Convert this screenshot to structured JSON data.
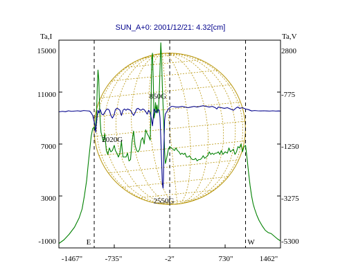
{
  "chart_data": {
    "type": "line",
    "title": "SUN_A+0: 2001/12/21: 4.32[cm]",
    "left_axis": {
      "label": "Ta,I",
      "ticks": [
        "15000",
        "11000",
        "7000",
        "3000",
        "-1000"
      ],
      "values": [
        15000,
        11000,
        7000,
        3000,
        -1000
      ],
      "ylim": [
        -1000,
        15000
      ]
    },
    "right_axis": {
      "label": "Ta,V",
      "ticks": [
        "2800",
        "-775",
        "-1250",
        "-3275",
        "-5300"
      ]
    },
    "x_axis": {
      "ticks": [
        "-1467\"",
        "-735\"",
        "-2\"",
        "730\"",
        "1462\""
      ],
      "values": [
        -1467,
        -735,
        -2,
        730,
        1462
      ],
      "xlim": [
        -1467,
        1462
      ]
    },
    "limb_markers": [
      {
        "label": "E",
        "x": -1000
      },
      {
        "label": "",
        "x": -2
      },
      {
        "label": "W",
        "x": 1000
      }
    ],
    "annotations": [
      {
        "text": "850G",
        "x": -160,
        "y": 10500
      },
      {
        "text": "2020G",
        "x": -760,
        "y": 7150
      },
      {
        "text": "2550G",
        "x": -80,
        "y": 2450
      }
    ],
    "series": [
      {
        "color": "#008000",
        "points": [
          [
            -1467,
            -660
          ],
          [
            -1400,
            -380
          ],
          [
            -1330,
            60
          ],
          [
            -1260,
            600
          ],
          [
            -1200,
            1300
          ],
          [
            -1160,
            2000
          ],
          [
            -1130,
            3000
          ],
          [
            -1100,
            4200
          ],
          [
            -1080,
            5400
          ],
          [
            -1060,
            6500
          ],
          [
            -1040,
            7600
          ],
          [
            -1020,
            8200
          ],
          [
            -1000,
            8300
          ],
          [
            -990,
            8100
          ],
          [
            -980,
            8700
          ],
          [
            -970,
            9200
          ],
          [
            -960,
            11300
          ],
          [
            -950,
            12700
          ],
          [
            -940,
            12000
          ],
          [
            -930,
            10000
          ],
          [
            -920,
            8700
          ],
          [
            -910,
            7900
          ],
          [
            -900,
            7700
          ],
          [
            -880,
            7200
          ],
          [
            -860,
            7800
          ],
          [
            -840,
            6500
          ],
          [
            -820,
            6200
          ],
          [
            -800,
            6700
          ],
          [
            -780,
            6400
          ],
          [
            -760,
            6500
          ],
          [
            -735,
            6900
          ],
          [
            -720,
            6500
          ],
          [
            -700,
            6300
          ],
          [
            -680,
            6000
          ],
          [
            -660,
            6300
          ],
          [
            -640,
            7200
          ],
          [
            -620,
            6000
          ],
          [
            -600,
            6000
          ],
          [
            -580,
            6000
          ],
          [
            -560,
            6300
          ],
          [
            -540,
            5700
          ],
          [
            -520,
            5800
          ],
          [
            -500,
            7200
          ],
          [
            -480,
            8000
          ],
          [
            -460,
            6900
          ],
          [
            -440,
            6500
          ],
          [
            -420,
            6400
          ],
          [
            -400,
            6600
          ],
          [
            -380,
            7300
          ],
          [
            -360,
            7500
          ],
          [
            -340,
            7000
          ],
          [
            -320,
            8100
          ],
          [
            -300,
            7800
          ],
          [
            -280,
            7600
          ],
          [
            -260,
            7300
          ],
          [
            -250,
            9600
          ],
          [
            -240,
            13500
          ],
          [
            -230,
            14000
          ],
          [
            -220,
            12000
          ],
          [
            -210,
            9000
          ],
          [
            -200,
            9300
          ],
          [
            -190,
            10200
          ],
          [
            -180,
            9500
          ],
          [
            -170,
            10000
          ],
          [
            -160,
            9400
          ],
          [
            -150,
            9700
          ],
          [
            -140,
            11000
          ],
          [
            -130,
            12800
          ],
          [
            -120,
            14800
          ],
          [
            -110,
            13600
          ],
          [
            -100,
            11500
          ],
          [
            -90,
            10000
          ],
          [
            -80,
            8500
          ],
          [
            -70,
            6500
          ],
          [
            -60,
            5500
          ],
          [
            -50,
            5700
          ],
          [
            -40,
            6000
          ],
          [
            -30,
            6300
          ],
          [
            -20,
            6600
          ],
          [
            -2,
            6800
          ],
          [
            20,
            6700
          ],
          [
            40,
            6600
          ],
          [
            60,
            6500
          ],
          [
            80,
            6700
          ],
          [
            100,
            6500
          ],
          [
            120,
            6400
          ],
          [
            140,
            6200
          ],
          [
            160,
            6300
          ],
          [
            180,
            6200
          ],
          [
            200,
            6300
          ],
          [
            220,
            6000
          ],
          [
            240,
            6000
          ],
          [
            260,
            6100
          ],
          [
            280,
            5900
          ],
          [
            300,
            5800
          ],
          [
            320,
            5800
          ],
          [
            340,
            5900
          ],
          [
            360,
            5700
          ],
          [
            380,
            5800
          ],
          [
            400,
            5800
          ],
          [
            420,
            5900
          ],
          [
            440,
            6100
          ],
          [
            460,
            5900
          ],
          [
            480,
            6000
          ],
          [
            500,
            6100
          ],
          [
            520,
            6400
          ],
          [
            540,
            6200
          ],
          [
            560,
            6300
          ],
          [
            580,
            6200
          ],
          [
            600,
            6300
          ],
          [
            620,
            6300
          ],
          [
            640,
            6400
          ],
          [
            660,
            6200
          ],
          [
            680,
            6500
          ],
          [
            700,
            6200
          ],
          [
            730,
            6400
          ],
          [
            760,
            6300
          ],
          [
            780,
            6700
          ],
          [
            800,
            6400
          ],
          [
            820,
            6500
          ],
          [
            840,
            6600
          ],
          [
            860,
            6200
          ],
          [
            880,
            6400
          ],
          [
            900,
            6800
          ],
          [
            920,
            6700
          ],
          [
            940,
            7000
          ],
          [
            960,
            6400
          ],
          [
            980,
            6800
          ],
          [
            1000,
            6900
          ],
          [
            1020,
            5900
          ],
          [
            1040,
            4800
          ],
          [
            1060,
            3800
          ],
          [
            1080,
            3000
          ],
          [
            1100,
            2400
          ],
          [
            1120,
            2000
          ],
          [
            1150,
            1500
          ],
          [
            1180,
            1100
          ],
          [
            1220,
            700
          ],
          [
            1260,
            360
          ],
          [
            1300,
            180
          ],
          [
            1340,
            100
          ],
          [
            1380,
            -100
          ],
          [
            1420,
            -300
          ],
          [
            1462,
            -460
          ]
        ]
      },
      {
        "color": "#00008b",
        "points": [
          [
            -1467,
            9480
          ],
          [
            -1420,
            9520
          ],
          [
            -1380,
            9490
          ],
          [
            -1340,
            9560
          ],
          [
            -1300,
            9520
          ],
          [
            -1260,
            9540
          ],
          [
            -1220,
            9560
          ],
          [
            -1180,
            9530
          ],
          [
            -1140,
            9580
          ],
          [
            -1100,
            9560
          ],
          [
            -1060,
            9540
          ],
          [
            -1040,
            9400
          ],
          [
            -1020,
            9200
          ],
          [
            -1000,
            8700
          ],
          [
            -990,
            8400
          ],
          [
            -980,
            7900
          ],
          [
            -970,
            8600
          ],
          [
            -960,
            9200
          ],
          [
            -950,
            9600
          ],
          [
            -940,
            9400
          ],
          [
            -920,
            9650
          ],
          [
            -900,
            9300
          ],
          [
            -880,
            9250
          ],
          [
            -860,
            9450
          ],
          [
            -840,
            9650
          ],
          [
            -820,
            9700
          ],
          [
            -800,
            9600
          ],
          [
            -780,
            9200
          ],
          [
            -760,
            9000
          ],
          [
            -740,
            9200
          ],
          [
            -720,
            9650
          ],
          [
            -700,
            9750
          ],
          [
            -680,
            9700
          ],
          [
            -660,
            9600
          ],
          [
            -640,
            9200
          ],
          [
            -620,
            9600
          ],
          [
            -600,
            9700
          ],
          [
            -580,
            9600
          ],
          [
            -560,
            9700
          ],
          [
            -540,
            9650
          ],
          [
            -520,
            9600
          ],
          [
            -500,
            9400
          ],
          [
            -480,
            9200
          ],
          [
            -460,
            9400
          ],
          [
            -440,
            9700
          ],
          [
            -420,
            9750
          ],
          [
            -400,
            9650
          ],
          [
            -380,
            9600
          ],
          [
            -360,
            9700
          ],
          [
            -340,
            9650
          ],
          [
            -320,
            9500
          ],
          [
            -300,
            9300
          ],
          [
            -280,
            9600
          ],
          [
            -260,
            9400
          ],
          [
            -240,
            8800
          ],
          [
            -230,
            8400
          ],
          [
            -220,
            9000
          ],
          [
            -210,
            9700
          ],
          [
            -200,
            9600
          ],
          [
            -180,
            9400
          ],
          [
            -160,
            9650
          ],
          [
            -140,
            9600
          ],
          [
            -130,
            9000
          ],
          [
            -120,
            7500
          ],
          [
            -110,
            5800
          ],
          [
            -100,
            4000
          ],
          [
            -90,
            3600
          ],
          [
            -85,
            4300
          ],
          [
            -80,
            6500
          ],
          [
            -70,
            8800
          ],
          [
            -60,
            9300
          ],
          [
            -40,
            9500
          ],
          [
            -20,
            9700
          ],
          [
            0,
            9800
          ],
          [
            20,
            9900
          ],
          [
            40,
            9900
          ],
          [
            80,
            9850
          ],
          [
            120,
            9850
          ],
          [
            160,
            9900
          ],
          [
            200,
            9850
          ],
          [
            240,
            9800
          ],
          [
            280,
            9850
          ],
          [
            320,
            9900
          ],
          [
            360,
            9850
          ],
          [
            400,
            9900
          ],
          [
            440,
            9950
          ],
          [
            480,
            9900
          ],
          [
            520,
            9850
          ],
          [
            560,
            9900
          ],
          [
            600,
            9800
          ],
          [
            620,
            9700
          ],
          [
            640,
            9850
          ],
          [
            680,
            9800
          ],
          [
            720,
            9750
          ],
          [
            760,
            9800
          ],
          [
            800,
            9700
          ],
          [
            840,
            9600
          ],
          [
            880,
            9800
          ],
          [
            900,
            9850
          ],
          [
            920,
            9750
          ],
          [
            960,
            9800
          ],
          [
            1000,
            9700
          ],
          [
            1040,
            9650
          ],
          [
            1080,
            9550
          ],
          [
            1120,
            9580
          ],
          [
            1160,
            9560
          ],
          [
            1200,
            9550
          ],
          [
            1240,
            9560
          ],
          [
            1280,
            9550
          ],
          [
            1320,
            9540
          ],
          [
            1360,
            9560
          ],
          [
            1400,
            9540
          ],
          [
            1440,
            9550
          ],
          [
            1462,
            9540
          ]
        ]
      }
    ],
    "solar_disk": {
      "color": "#b8960c",
      "cx": -2,
      "radius_arcsec": 1000
    },
    "grid": "lat-lon",
    "legend": "none"
  }
}
